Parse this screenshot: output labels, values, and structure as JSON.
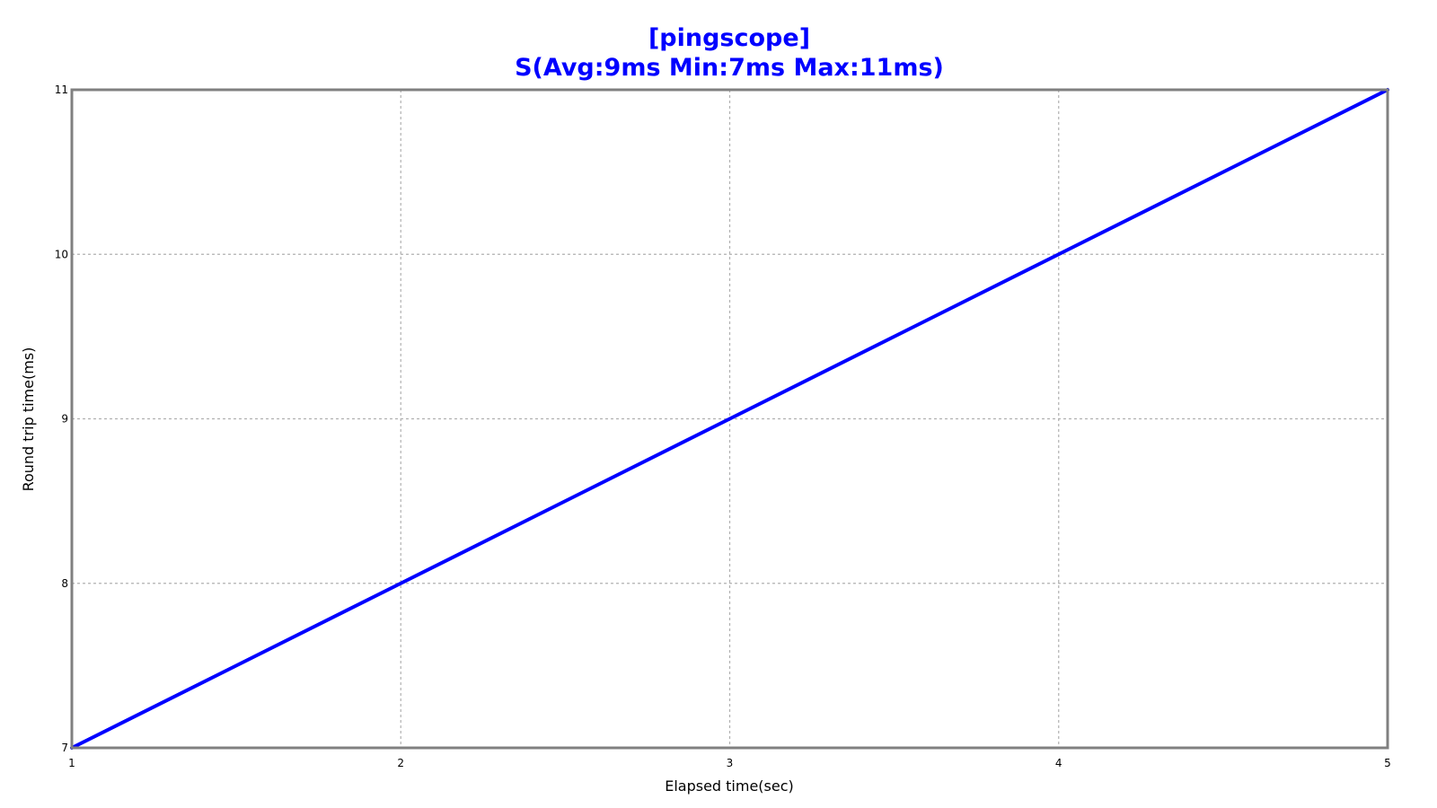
{
  "chart_data": {
    "type": "line",
    "title": "[pingscope]",
    "subtitle": "S(Avg:9ms Min:7ms Max:11ms)",
    "xlabel": "Elapsed time(sec)",
    "ylabel": "Round trip time(ms)",
    "x": [
      1,
      2,
      3,
      4,
      5
    ],
    "xlim": [
      1,
      5
    ],
    "ylim": [
      7,
      11
    ],
    "xticks": [
      "1",
      "2",
      "3",
      "4",
      "5"
    ],
    "yticks": [
      "7",
      "8",
      "9",
      "10",
      "11"
    ],
    "grid": true,
    "series": [
      {
        "values": [
          7,
          8,
          9,
          10,
          11
        ],
        "color": "#0000ff"
      }
    ],
    "colors": {
      "title": "#0000ff",
      "frame": "#808080",
      "grid": "#b0b0b0"
    }
  }
}
